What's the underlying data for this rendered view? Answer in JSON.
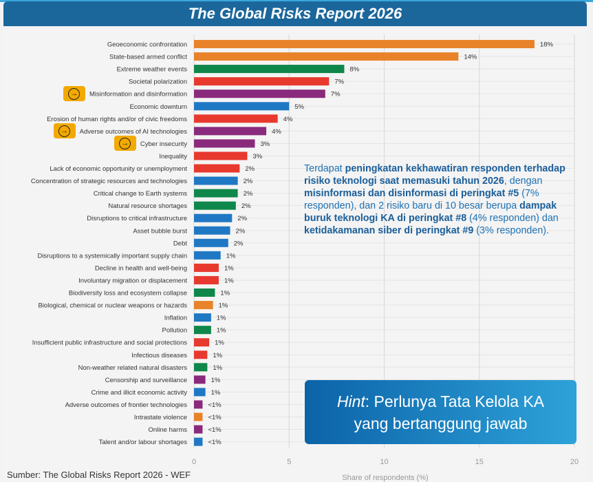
{
  "header": {
    "title": "The Global Risks Report 2026"
  },
  "source": "Sumber: The Global Risks Report 2026 - WEF",
  "callout": {
    "segments": [
      {
        "text": "Terdapat ",
        "bold": false
      },
      {
        "text": "peningkatan kekhawatiran responden terhadap risiko teknologi saat memasuki tahun 2026",
        "bold": true
      },
      {
        "text": ", dengan ",
        "bold": false
      },
      {
        "text": "misinformasi dan disinformasi di peringkat #5",
        "bold": true
      },
      {
        "text": " (7% responden), dan 2 risiko baru di 10 besar berupa ",
        "bold": false
      },
      {
        "text": "dampak buruk teknologi KA di peringkat #8",
        "bold": true
      },
      {
        "text": " (4% responden) dan ",
        "bold": false
      },
      {
        "text": "ketidakamanan siber di peringkat #9",
        "bold": true
      },
      {
        "text": " (3% responden).",
        "bold": false
      }
    ]
  },
  "hint": {
    "label": "Hint",
    "text1": ": Perlunya Tata Kelola KA",
    "text2": "yang bertanggung jawab"
  },
  "colors": {
    "orange": "#e8832a",
    "green": "#10874a",
    "red": "#e8392e",
    "purple": "#8a2a7c",
    "blue": "#1f78c4"
  },
  "highlighted_rows": [
    4,
    7,
    8
  ],
  "chart_data": {
    "type": "bar",
    "orientation": "horizontal",
    "xlabel": "Share of respondents (%)",
    "xlim": [
      0,
      20
    ],
    "xticks": [
      "0",
      "5",
      "10",
      "15",
      "20"
    ],
    "grid": true,
    "categories": [
      "Geoeconomic confrontation",
      "State-based armed conflict",
      "Extreme weather events",
      "Societal polarization",
      "Misinformation and disinformation",
      "Economic downturn",
      "Erosion of human rights and/or of civic freedoms",
      "Adverse outcomes of AI technologies",
      "Cyber insecurity",
      "Inequality",
      "Lack of economic opportunity or unemployment",
      "Concentration of strategic resources and technologies",
      "Critical change to Earth systems",
      "Natural resource shortages",
      "Disruptions to critical infrastructure",
      "Asset bubble burst",
      "Debt",
      "Disruptions to a systemically important supply chain",
      "Decline in health and well-being",
      "Involuntary migration or displacement",
      "Biodiversity loss and ecosystem collapse",
      "Biological, chemical or nuclear weapons or hazards",
      "Inflation",
      "Pollution",
      "Insufficient public infrastructure and social protections",
      "Infectious diseases",
      "Non-weather related natural disasters",
      "Censorship and surveillance",
      "Crime and illicit economic activity",
      "Adverse outcomes of frontier technologies",
      "Intrastate violence",
      "Online harms",
      "Talent and/or labour shortages"
    ],
    "values": [
      17.9,
      13.9,
      7.9,
      7.1,
      6.9,
      5.0,
      4.4,
      3.8,
      3.2,
      2.8,
      2.4,
      2.3,
      2.3,
      2.2,
      2.0,
      1.9,
      1.8,
      1.4,
      1.3,
      1.3,
      1.1,
      1.0,
      0.9,
      0.9,
      0.8,
      0.7,
      0.7,
      0.6,
      0.6,
      0.45,
      0.45,
      0.45,
      0.45
    ],
    "value_labels": [
      "18%",
      "14%",
      "8%",
      "7%",
      "7%",
      "5%",
      "4%",
      "4%",
      "3%",
      "3%",
      "2%",
      "2%",
      "2%",
      "2%",
      "2%",
      "2%",
      "2%",
      "1%",
      "1%",
      "1%",
      "1%",
      "1%",
      "1%",
      "1%",
      "1%",
      "1%",
      "1%",
      "1%",
      "1%",
      "<1%",
      "<1%",
      "<1%",
      "<1%"
    ],
    "color_groups": [
      "orange",
      "orange",
      "green",
      "red",
      "purple",
      "blue",
      "red",
      "purple",
      "purple",
      "red",
      "red",
      "blue",
      "green",
      "green",
      "blue",
      "blue",
      "blue",
      "blue",
      "red",
      "red",
      "green",
      "orange",
      "blue",
      "green",
      "red",
      "red",
      "green",
      "purple",
      "blue",
      "purple",
      "orange",
      "purple",
      "blue"
    ]
  }
}
